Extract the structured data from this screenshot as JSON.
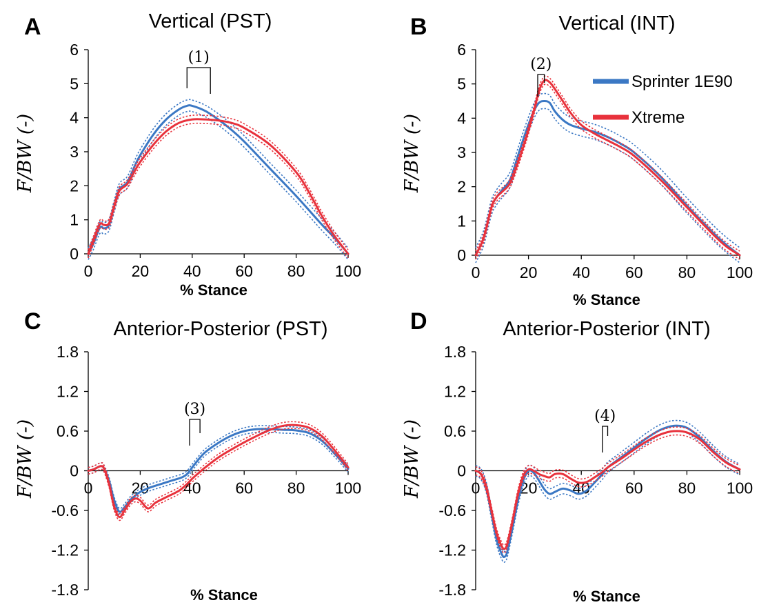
{
  "colors": {
    "sprinter": "#3b78c4",
    "xtreme": "#e8323c",
    "axis": "#000000"
  },
  "legend": {
    "items": [
      {
        "label": "Sprinter 1E90",
        "color": "#3b78c4"
      },
      {
        "label": "Xtreme",
        "color": "#e8323c"
      }
    ]
  },
  "chart_data": [
    {
      "panel": "A",
      "title": "Vertical (PST)",
      "type": "line",
      "xlabel": "% Stance",
      "ylabel": "F/BW (-)",
      "xlim": [
        0,
        100
      ],
      "ylim": [
        0,
        6
      ],
      "xticks": [
        0,
        20,
        40,
        60,
        80,
        100
      ],
      "yticks": [
        0,
        1,
        2,
        3,
        4,
        5,
        6
      ],
      "xtick_labels": [
        "0",
        "20",
        "40",
        "60",
        "80",
        "100"
      ],
      "ytick_labels": [
        "0",
        "1",
        "2",
        "3",
        "4",
        "5",
        "6"
      ],
      "annotation": {
        "label": "(1)",
        "x_start": 38,
        "x_end": 47
      },
      "series": [
        {
          "name": "Sprinter 1E90",
          "color": "#3b78c4",
          "band": 0.17,
          "x": [
            0,
            2,
            4,
            5,
            6,
            8,
            10,
            12,
            15,
            18,
            20,
            25,
            30,
            35,
            38,
            40,
            45,
            50,
            55,
            60,
            70,
            80,
            90,
            95,
            100
          ],
          "y": [
            0,
            0.3,
            0.7,
            0.8,
            0.75,
            0.85,
            1.4,
            1.9,
            2.1,
            2.6,
            2.9,
            3.5,
            3.95,
            4.25,
            4.35,
            4.35,
            4.2,
            3.95,
            3.65,
            3.3,
            2.5,
            1.7,
            0.85,
            0.45,
            0
          ]
        },
        {
          "name": "Xtreme",
          "color": "#e8323c",
          "band": 0.12,
          "x": [
            0,
            2,
            4,
            5,
            6,
            8,
            10,
            12,
            15,
            18,
            20,
            25,
            30,
            35,
            40,
            45,
            50,
            55,
            60,
            70,
            80,
            85,
            90,
            95,
            100
          ],
          "y": [
            0,
            0.4,
            0.8,
            0.9,
            0.85,
            0.9,
            1.4,
            1.85,
            2.05,
            2.45,
            2.7,
            3.2,
            3.6,
            3.85,
            3.95,
            3.95,
            3.92,
            3.85,
            3.7,
            3.2,
            2.4,
            1.8,
            1.1,
            0.5,
            0
          ]
        }
      ]
    },
    {
      "panel": "B",
      "title": "Vertical (INT)",
      "type": "line",
      "xlabel": "% Stance",
      "ylabel": "F/BW (-)",
      "xlim": [
        0,
        100
      ],
      "ylim": [
        0,
        6
      ],
      "xticks": [
        0,
        20,
        40,
        60,
        80,
        100
      ],
      "yticks": [
        0,
        1,
        2,
        3,
        4,
        5,
        6
      ],
      "xtick_labels": [
        "0",
        "20",
        "40",
        "60",
        "80",
        "100"
      ],
      "ytick_labels": [
        "0",
        "1",
        "2",
        "3",
        "4",
        "5",
        "6"
      ],
      "annotation": {
        "label": "(2)",
        "x_start": 23.5,
        "x_end": 26
      },
      "series": [
        {
          "name": "Sprinter 1E90",
          "color": "#3b78c4",
          "band": 0.22,
          "x": [
            0,
            3,
            6,
            8,
            10,
            13,
            16,
            19,
            22,
            24,
            26,
            28,
            30,
            33,
            36,
            40,
            45,
            50,
            55,
            60,
            70,
            80,
            90,
            95,
            100
          ],
          "y": [
            0,
            0.5,
            1.4,
            1.7,
            1.9,
            2.2,
            2.9,
            3.6,
            4.2,
            4.45,
            4.5,
            4.45,
            4.2,
            3.95,
            3.8,
            3.7,
            3.6,
            3.45,
            3.25,
            3.0,
            2.3,
            1.45,
            0.65,
            0.3,
            0
          ]
        },
        {
          "name": "Xtreme",
          "color": "#e8323c",
          "band": 0.12,
          "x": [
            0,
            3,
            6,
            8,
            10,
            13,
            16,
            19,
            22,
            24,
            26,
            28,
            30,
            33,
            36,
            40,
            45,
            50,
            55,
            60,
            70,
            80,
            90,
            95,
            100
          ],
          "y": [
            0,
            0.5,
            1.4,
            1.7,
            1.85,
            2.1,
            2.7,
            3.4,
            4.2,
            4.8,
            5.1,
            5.05,
            4.85,
            4.5,
            4.15,
            3.8,
            3.55,
            3.35,
            3.15,
            2.9,
            2.2,
            1.4,
            0.6,
            0.25,
            0
          ]
        }
      ]
    },
    {
      "panel": "C",
      "title": "Anterior-Posterior (PST)",
      "type": "line",
      "xlabel": "% Stance",
      "ylabel": "F/BW (-)",
      "xlim": [
        0,
        100
      ],
      "ylim": [
        -1.8,
        1.8
      ],
      "xticks": [
        0,
        20,
        40,
        60,
        80,
        100
      ],
      "yticks": [
        -1.8,
        -1.2,
        -0.6,
        0,
        0.6,
        1.2,
        1.8
      ],
      "xtick_labels": [
        "0",
        "20",
        "40",
        "60",
        "80",
        "100"
      ],
      "ytick_labels": [
        "-1.8",
        "-1.2",
        "-0.6",
        "0",
        "0.6",
        "1.2",
        "1.8"
      ],
      "annotation": {
        "label": "(3)",
        "x_start": 39,
        "x_end": 43
      },
      "series": [
        {
          "name": "Sprinter 1E90",
          "color": "#3b78c4",
          "band": 0.05,
          "x": [
            0,
            2,
            4,
            5,
            6,
            8,
            10,
            12,
            14,
            16,
            18,
            20,
            24,
            28,
            32,
            36,
            38,
            40,
            42,
            45,
            50,
            55,
            60,
            65,
            70,
            75,
            80,
            85,
            90,
            95,
            100
          ],
          "y": [
            0,
            0.02,
            0.06,
            0.07,
            0.04,
            -0.15,
            -0.45,
            -0.62,
            -0.55,
            -0.45,
            -0.38,
            -0.32,
            -0.25,
            -0.2,
            -0.15,
            -0.1,
            -0.05,
            0.05,
            0.15,
            0.28,
            0.42,
            0.53,
            0.6,
            0.63,
            0.63,
            0.62,
            0.61,
            0.57,
            0.45,
            0.25,
            0.03
          ]
        },
        {
          "name": "Xtreme",
          "color": "#e8323c",
          "band": 0.05,
          "x": [
            0,
            2,
            4,
            5,
            6,
            8,
            10,
            12,
            14,
            16,
            18,
            20,
            23,
            26,
            30,
            35,
            38,
            40,
            42,
            45,
            50,
            55,
            60,
            65,
            70,
            75,
            80,
            85,
            90,
            95,
            100
          ],
          "y": [
            0,
            0.02,
            0.06,
            0.07,
            0.04,
            -0.2,
            -0.55,
            -0.7,
            -0.6,
            -0.48,
            -0.42,
            -0.45,
            -0.57,
            -0.48,
            -0.4,
            -0.3,
            -0.2,
            -0.12,
            -0.05,
            0.05,
            0.2,
            0.32,
            0.43,
            0.53,
            0.62,
            0.68,
            0.69,
            0.65,
            0.52,
            0.3,
            0.05
          ]
        }
      ]
    },
    {
      "panel": "D",
      "title": "Anterior-Posterior (INT)",
      "type": "line",
      "xlabel": "% Stance",
      "ylabel": "F/BW (-)",
      "xlim": [
        0,
        100
      ],
      "ylim": [
        -1.8,
        1.8
      ],
      "xticks": [
        0,
        20,
        40,
        60,
        80,
        100
      ],
      "yticks": [
        -1.8,
        -1.2,
        -0.6,
        0,
        0.6,
        1.2,
        1.8
      ],
      "xtick_labels": [
        "0",
        "20",
        "40",
        "60",
        "80",
        "100"
      ],
      "ytick_labels": [
        "-1.8",
        "-1.2",
        "-0.6",
        "0",
        "0.6",
        "1.2",
        "1.8"
      ],
      "annotation": {
        "label": "(4)",
        "x_start": 48,
        "x_end": 50
      },
      "series": [
        {
          "name": "Sprinter 1E90",
          "color": "#3b78c4",
          "band": 0.08,
          "x": [
            0,
            2,
            4,
            6,
            8,
            10,
            11,
            12,
            14,
            16,
            18,
            20,
            22,
            24,
            26,
            28,
            30,
            33,
            36,
            39,
            42,
            45,
            48,
            50,
            55,
            60,
            65,
            70,
            75,
            80,
            85,
            90,
            95,
            100
          ],
          "y": [
            0,
            -0.05,
            -0.25,
            -0.65,
            -1.05,
            -1.27,
            -1.3,
            -1.22,
            -0.85,
            -0.45,
            -0.15,
            0.0,
            -0.03,
            -0.15,
            -0.28,
            -0.35,
            -0.32,
            -0.27,
            -0.3,
            -0.35,
            -0.3,
            -0.18,
            -0.05,
            0.05,
            0.2,
            0.35,
            0.5,
            0.62,
            0.68,
            0.65,
            0.5,
            0.3,
            0.13,
            0.02
          ]
        },
        {
          "name": "Xtreme",
          "color": "#e8323c",
          "band": 0.06,
          "x": [
            0,
            2,
            4,
            6,
            8,
            10,
            11,
            12,
            14,
            16,
            18,
            20,
            22,
            24,
            26,
            28,
            30,
            33,
            36,
            39,
            42,
            45,
            48,
            50,
            55,
            60,
            65,
            70,
            75,
            80,
            85,
            90,
            95,
            100
          ],
          "y": [
            0,
            -0.05,
            -0.25,
            -0.6,
            -0.95,
            -1.15,
            -1.18,
            -1.1,
            -0.75,
            -0.35,
            -0.08,
            0.02,
            0.0,
            -0.05,
            -0.08,
            -0.1,
            -0.05,
            -0.05,
            -0.12,
            -0.18,
            -0.17,
            -0.1,
            -0.02,
            0.05,
            0.18,
            0.32,
            0.45,
            0.55,
            0.6,
            0.58,
            0.47,
            0.28,
            0.12,
            0.02
          ]
        }
      ]
    }
  ]
}
